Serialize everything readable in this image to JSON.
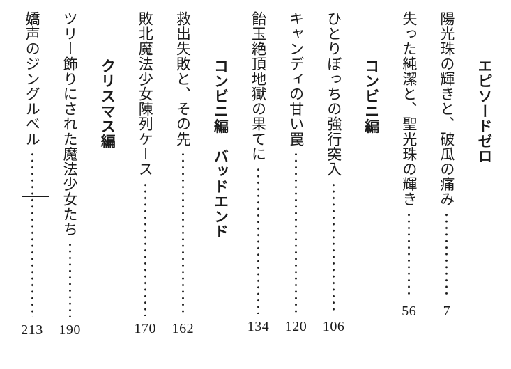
{
  "page": {
    "background_color": "#ffffff",
    "text_color": "#1b1b1b",
    "writing_direction": "vertical-rl"
  },
  "decorations": {
    "dash_mark": "short-horizontal-rule-over-left-dot-leader"
  },
  "toc": {
    "sections": [
      {
        "header": "エピソードゼロ",
        "entries": [
          {
            "title": "陽光珠の輝きと、破瓜の痛み",
            "page": "7"
          },
          {
            "title": "失った純潔と、聖光珠の輝き",
            "page": "56"
          }
        ]
      },
      {
        "header": "コンビニ編",
        "entries": [
          {
            "title": "ひとりぼっちの強行突入",
            "page": "106"
          },
          {
            "title": "キャンディの甘い罠",
            "page": "120"
          },
          {
            "title": "飴玉絶頂地獄の果てに",
            "page": "134"
          }
        ]
      },
      {
        "header": "コンビニ編　バッドエンド",
        "entries": [
          {
            "title": "救出失敗と、その先",
            "page": "162"
          },
          {
            "title": "敗北魔法少女陳列ケース",
            "page": "170"
          }
        ]
      },
      {
        "header": "クリスマス編",
        "entries": [
          {
            "title": "ツリー飾りにされた魔法少女たち",
            "page": "190"
          },
          {
            "title": "嬌声のジングルベル",
            "page": "213"
          }
        ]
      }
    ]
  }
}
